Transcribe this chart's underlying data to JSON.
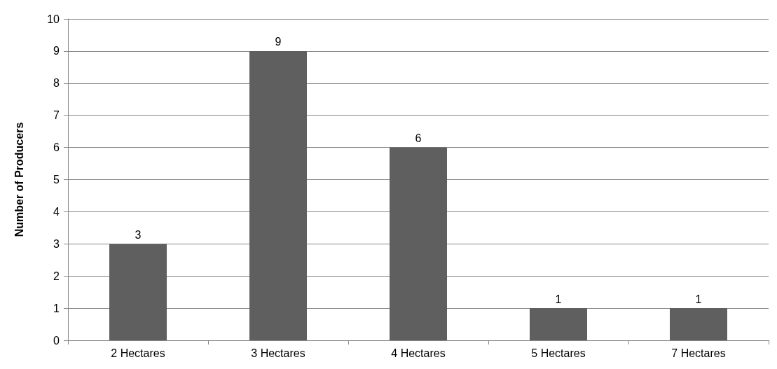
{
  "chart_data": {
    "type": "bar",
    "ylabel": "Number of Producers",
    "categories": [
      "2 Hectares",
      "3 Hectares",
      "4 Hectares",
      "5 Hectares",
      "7 Hectares"
    ],
    "values": [
      3,
      9,
      6,
      1,
      1
    ],
    "color": "#5f5f5f",
    "ylim": [
      0,
      10
    ],
    "yticks": [
      0,
      1,
      2,
      3,
      4,
      5,
      6,
      7,
      8,
      9,
      10
    ],
    "grid": "y",
    "data_labels": true
  }
}
